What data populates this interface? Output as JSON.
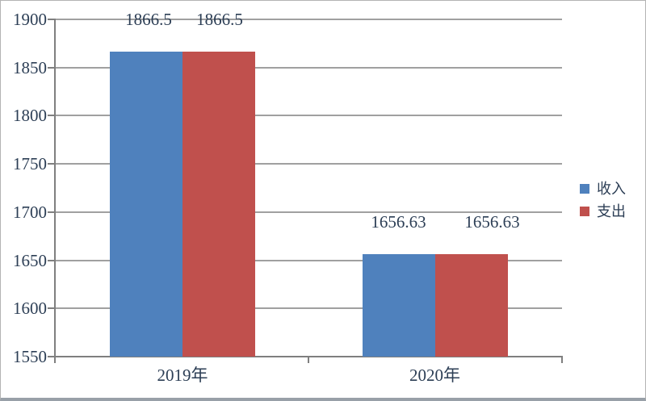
{
  "chart_data": {
    "type": "bar",
    "title": "",
    "xlabel": "",
    "ylabel": "",
    "categories": [
      "2019年",
      "2020年"
    ],
    "series": [
      {
        "name": "收入",
        "color": "#4f81bd",
        "values": [
          1866.5,
          1656.63
        ],
        "labels": [
          "1866.5",
          "1656.63"
        ]
      },
      {
        "name": "支出",
        "color": "#c0504d",
        "values": [
          1866.5,
          1656.63
        ],
        "labels": [
          "1866.5",
          "1656.63"
        ]
      }
    ],
    "ylim": [
      1550,
      1900
    ],
    "yticks": [
      1550,
      1600,
      1650,
      1700,
      1750,
      1800,
      1850,
      1900
    ],
    "grid": true,
    "legend_position": "right",
    "bar_baseline": 1550
  },
  "colors": {
    "background": "#ffffff",
    "grid": "#a0a0a0",
    "axis": "#7f7f7f",
    "text": "#2c3e55",
    "frame_border": "#b3b3b3",
    "frame_border_bottom": "#98a0a8"
  }
}
